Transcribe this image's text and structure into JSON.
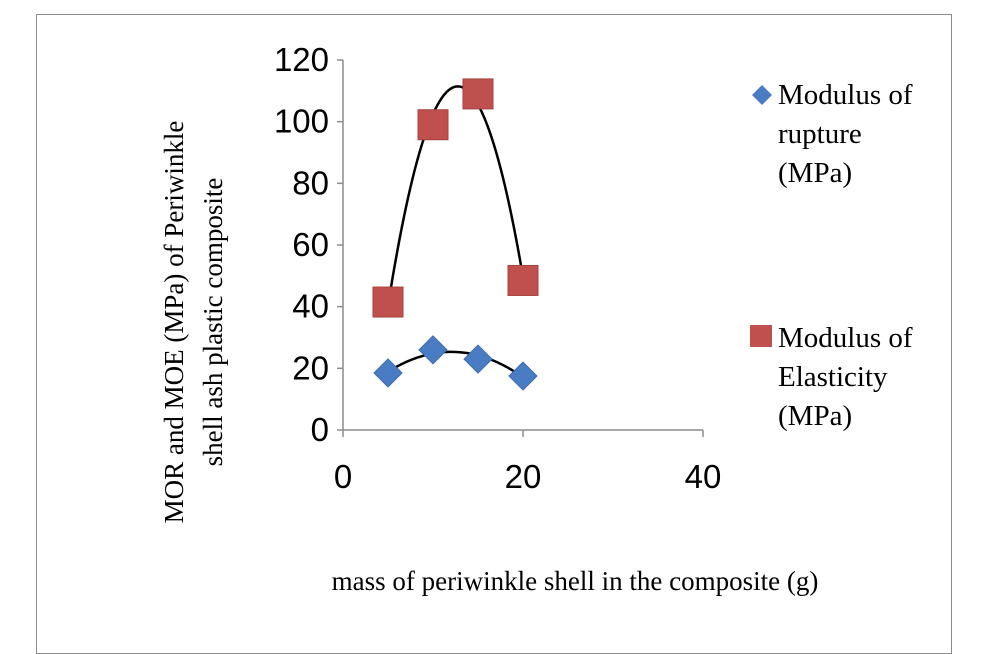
{
  "chart_data": {
    "type": "scatter",
    "title": "",
    "xlabel": "mass of periwinkle shell in the composite (g)",
    "ylabel_lines": [
      "MOR and MOE (MPa) of Periwinkle",
      "shell ash plastic composite"
    ],
    "xlim": [
      0,
      40
    ],
    "ylim": [
      0,
      120
    ],
    "x_ticks": [
      "0",
      "20",
      "40"
    ],
    "y_ticks": [
      "0",
      "20",
      "40",
      "60",
      "80",
      "100",
      "120"
    ],
    "grid": false,
    "legend_position": "right",
    "trendline": "polynomial order 2",
    "series": [
      {
        "name_lines": [
          "Modulus of",
          "rupture",
          "(MPa)"
        ],
        "marker": "diamond",
        "color": "#4a7cc3",
        "x": [
          5,
          10,
          15,
          20
        ],
        "y": [
          18.5,
          26,
          23,
          17.5
        ]
      },
      {
        "name_lines": [
          "Modulus of",
          "Elasticity",
          "(MPa)"
        ],
        "marker": "square",
        "color": "#c0504d",
        "x": [
          5,
          10,
          15,
          20
        ],
        "y": [
          41.5,
          99,
          109,
          48.5
        ]
      }
    ]
  }
}
